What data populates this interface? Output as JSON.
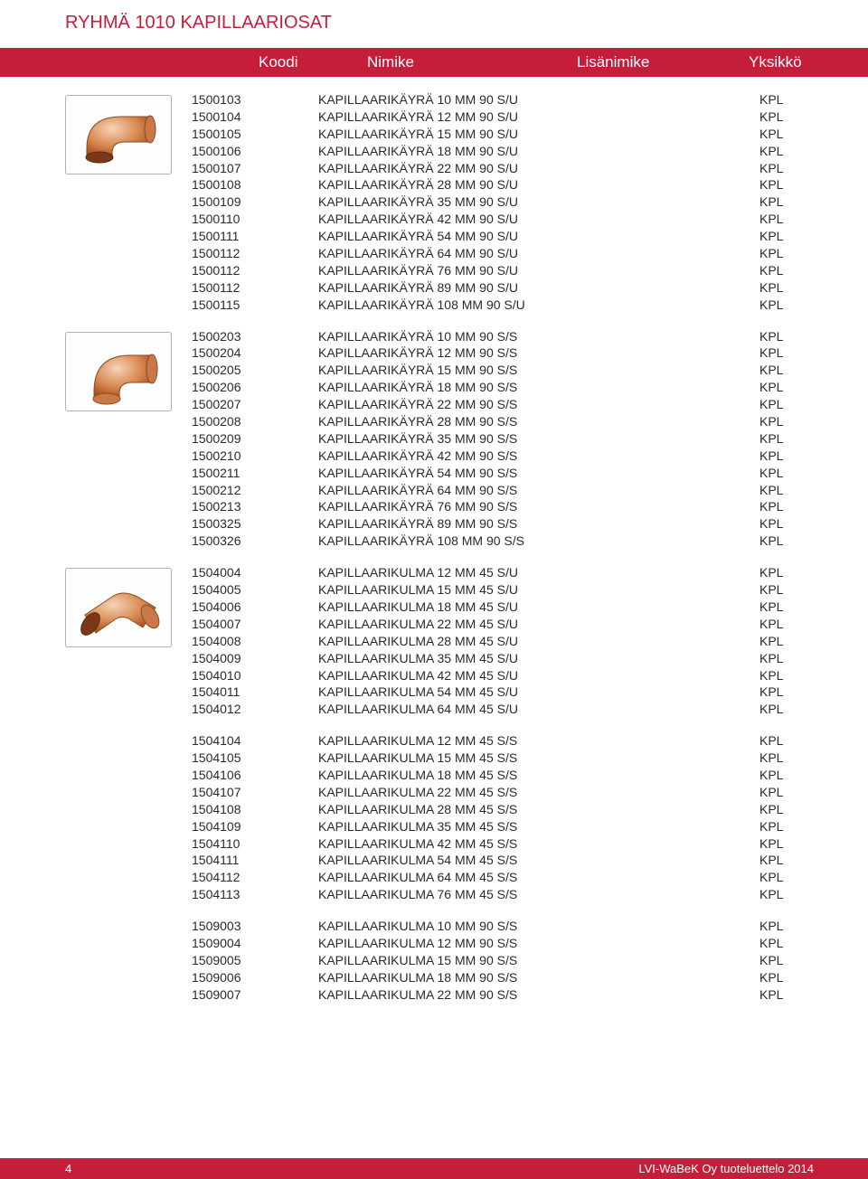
{
  "page_title": "RYHMÄ 1010 KAPILLAARIOSAT",
  "header": {
    "koodi": "Koodi",
    "nimike": "Nimike",
    "lisanimike": "Lisänimike",
    "yksikko": "Yksikkö"
  },
  "colors": {
    "brand": "#c41e3a",
    "text": "#2a2a2a",
    "copper_light": "#e8a878",
    "copper_dark": "#b56838"
  },
  "groups": [
    {
      "image": "elbow-90-su",
      "rows": [
        {
          "code": "1500103",
          "name": "KAPILLAARIKÄYRÄ 10 MM 90 S/U",
          "unit": "KPL"
        },
        {
          "code": "1500104",
          "name": "KAPILLAARIKÄYRÄ 12 MM 90 S/U",
          "unit": "KPL"
        },
        {
          "code": "1500105",
          "name": "KAPILLAARIKÄYRÄ 15 MM 90 S/U",
          "unit": "KPL"
        },
        {
          "code": "1500106",
          "name": "KAPILLAARIKÄYRÄ 18 MM 90 S/U",
          "unit": "KPL"
        },
        {
          "code": "1500107",
          "name": "KAPILLAARIKÄYRÄ 22 MM 90 S/U",
          "unit": "KPL"
        },
        {
          "code": "1500108",
          "name": "KAPILLAARIKÄYRÄ 28 MM 90 S/U",
          "unit": "KPL"
        },
        {
          "code": "1500109",
          "name": "KAPILLAARIKÄYRÄ 35 MM 90 S/U",
          "unit": "KPL"
        },
        {
          "code": "1500110",
          "name": "KAPILLAARIKÄYRÄ 42 MM 90 S/U",
          "unit": "KPL"
        },
        {
          "code": "1500111",
          "name": "KAPILLAARIKÄYRÄ 54 MM 90 S/U",
          "unit": "KPL"
        },
        {
          "code": "1500112",
          "name": "KAPILLAARIKÄYRÄ 64 MM 90 S/U",
          "unit": "KPL"
        },
        {
          "code": "1500112",
          "name": "KAPILLAARIKÄYRÄ 76 MM 90 S/U",
          "unit": "KPL"
        },
        {
          "code": "1500112",
          "name": "KAPILLAARIKÄYRÄ 89 MM 90 S/U",
          "unit": "KPL"
        },
        {
          "code": "1500115",
          "name": "KAPILLAARIKÄYRÄ 108 MM 90 S/U",
          "unit": "KPL"
        }
      ]
    },
    {
      "image": "elbow-90-ss",
      "rows": [
        {
          "code": "1500203",
          "name": "KAPILLAARIKÄYRÄ 10 MM 90 S/S",
          "unit": "KPL"
        },
        {
          "code": "1500204",
          "name": "KAPILLAARIKÄYRÄ 12 MM 90 S/S",
          "unit": "KPL"
        },
        {
          "code": "1500205",
          "name": "KAPILLAARIKÄYRÄ 15 MM 90 S/S",
          "unit": "KPL"
        },
        {
          "code": "1500206",
          "name": "KAPILLAARIKÄYRÄ 18 MM 90 S/S",
          "unit": "KPL"
        },
        {
          "code": "1500207",
          "name": "KAPILLAARIKÄYRÄ 22 MM 90 S/S",
          "unit": "KPL"
        },
        {
          "code": "1500208",
          "name": "KAPILLAARIKÄYRÄ 28 MM 90 S/S",
          "unit": "KPL"
        },
        {
          "code": "1500209",
          "name": "KAPILLAARIKÄYRÄ 35 MM 90 S/S",
          "unit": "KPL"
        },
        {
          "code": "1500210",
          "name": "KAPILLAARIKÄYRÄ 42 MM 90 S/S",
          "unit": "KPL"
        },
        {
          "code": "1500211",
          "name": "KAPILLAARIKÄYRÄ 54 MM 90 S/S",
          "unit": "KPL"
        },
        {
          "code": "1500212",
          "name": "KAPILLAARIKÄYRÄ 64 MM 90 S/S",
          "unit": "KPL"
        },
        {
          "code": "1500213",
          "name": "KAPILLAARIKÄYRÄ 76 MM 90 S/S",
          "unit": "KPL"
        },
        {
          "code": "1500325",
          "name": "KAPILLAARIKÄYRÄ 89 MM 90 S/S",
          "unit": "KPL"
        },
        {
          "code": "1500326",
          "name": "KAPILLAARIKÄYRÄ 108 MM 90 S/S",
          "unit": "KPL"
        }
      ]
    },
    {
      "image": "elbow-45",
      "rows": [
        {
          "code": "1504004",
          "name": "KAPILLAARIKULMA 12 MM 45 S/U",
          "unit": "KPL"
        },
        {
          "code": "1504005",
          "name": "KAPILLAARIKULMA 15 MM 45 S/U",
          "unit": "KPL"
        },
        {
          "code": "1504006",
          "name": "KAPILLAARIKULMA 18 MM 45 S/U",
          "unit": "KPL"
        },
        {
          "code": "1504007",
          "name": "KAPILLAARIKULMA 22 MM 45 S/U",
          "unit": "KPL"
        },
        {
          "code": "1504008",
          "name": "KAPILLAARIKULMA 28 MM 45 S/U",
          "unit": "KPL"
        },
        {
          "code": "1504009",
          "name": "KAPILLAARIKULMA 35 MM 45 S/U",
          "unit": "KPL"
        },
        {
          "code": "1504010",
          "name": "KAPILLAARIKULMA 42 MM 45 S/U",
          "unit": "KPL"
        },
        {
          "code": "1504011",
          "name": "KAPILLAARIKULMA 54 MM 45 S/U",
          "unit": "KPL"
        },
        {
          "code": "1504012",
          "name": "KAPILLAARIKULMA 64 MM 45 S/U",
          "unit": "KPL"
        }
      ]
    },
    {
      "image": null,
      "rows": [
        {
          "code": "1504104",
          "name": "KAPILLAARIKULMA 12 MM 45 S/S",
          "unit": "KPL"
        },
        {
          "code": "1504105",
          "name": "KAPILLAARIKULMA 15 MM 45 S/S",
          "unit": "KPL"
        },
        {
          "code": "1504106",
          "name": "KAPILLAARIKULMA 18 MM 45 S/S",
          "unit": "KPL"
        },
        {
          "code": "1504107",
          "name": "KAPILLAARIKULMA 22 MM 45 S/S",
          "unit": "KPL"
        },
        {
          "code": "1504108",
          "name": "KAPILLAARIKULMA 28 MM 45 S/S",
          "unit": "KPL"
        },
        {
          "code": "1504109",
          "name": "KAPILLAARIKULMA 35 MM 45 S/S",
          "unit": "KPL"
        },
        {
          "code": "1504110",
          "name": "KAPILLAARIKULMA 42 MM 45 S/S",
          "unit": "KPL"
        },
        {
          "code": "1504111",
          "name": "KAPILLAARIKULMA 54 MM 45 S/S",
          "unit": "KPL"
        },
        {
          "code": "1504112",
          "name": "KAPILLAARIKULMA 64 MM 45 S/S",
          "unit": "KPL"
        },
        {
          "code": "1504113",
          "name": "KAPILLAARIKULMA 76 MM 45 S/S",
          "unit": "KPL"
        }
      ]
    },
    {
      "image": null,
      "rows": [
        {
          "code": "1509003",
          "name": "KAPILLAARIKULMA 10 MM 90 S/S",
          "unit": "KPL"
        },
        {
          "code": "1509004",
          "name": "KAPILLAARIKULMA 12 MM 90 S/S",
          "unit": "KPL"
        },
        {
          "code": "1509005",
          "name": "KAPILLAARIKULMA 15 MM 90 S/S",
          "unit": "KPL"
        },
        {
          "code": "1509006",
          "name": "KAPILLAARIKULMA 18 MM 90 S/S",
          "unit": "KPL"
        },
        {
          "code": "1509007",
          "name": "KAPILLAARIKULMA 22 MM 90 S/S",
          "unit": "KPL"
        }
      ]
    }
  ],
  "footer": {
    "page_number": "4",
    "text": "LVI-WaBeK Oy tuoteluettelo 2014"
  }
}
